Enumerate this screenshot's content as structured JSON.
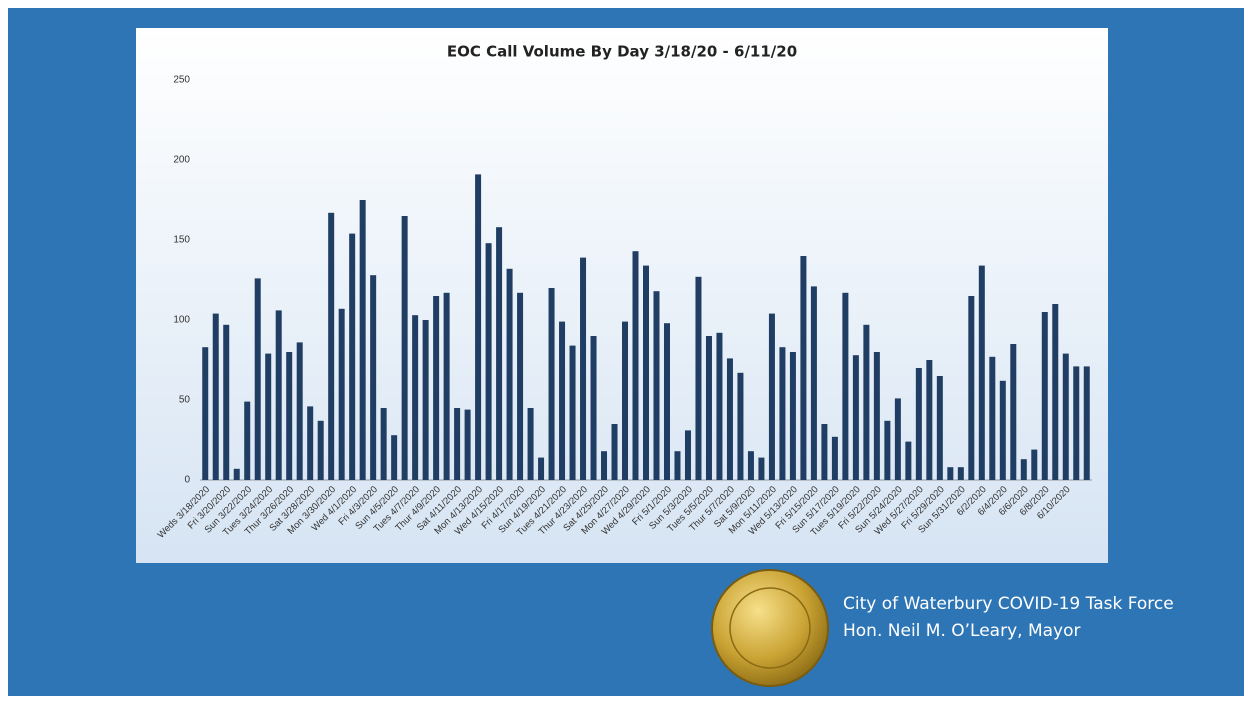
{
  "chart_data": {
    "type": "bar",
    "title": "EOC Call Volume By Day 3/18/20 - 6/11/20",
    "categories": [
      "Weds 3/18/2020",
      null,
      "Fri 3/20/2020",
      null,
      "Sun 3/22/2020",
      null,
      "Tues 3/24/2020",
      null,
      "Thur 3/26/2020",
      null,
      "Sat 3/28/2020",
      null,
      "Mon 3/30/2020",
      null,
      "Wed 4/1/2020",
      null,
      "Fri 4/3/2020",
      null,
      "Sun 4/5/2020",
      null,
      "Tues 4/7/2020",
      null,
      "Thur 4/9/2020",
      null,
      "Sat 4/11/2020",
      null,
      "Mon 4/13/2020",
      null,
      "Wed 4/15/2020",
      null,
      "Fri 4/17/2020",
      null,
      "Sun 4/19/2020",
      null,
      "Tues 4/21/2020",
      null,
      "Thur 4/23/2020",
      null,
      "Sat 4/25/2020",
      null,
      "Mon 4/27/2020",
      null,
      "Wed 4/29/2020",
      null,
      "Fri 5/1/2020",
      null,
      "Sun 5/3/2020",
      null,
      "Tues 5/5/2020",
      null,
      "Thur 5/7/2020",
      null,
      "Sat 5/9/2020",
      null,
      "Mon 5/11/2020",
      null,
      "Wed 5/13/2020",
      null,
      "Fri 5/15/2020",
      null,
      "Sun 5/17/2020",
      null,
      "Tues 5/19/2020",
      null,
      "Fri 5/22/2020",
      null,
      "Sun 5/24/2020",
      null,
      "Wed 5/27/2020",
      null,
      "Fri 5/29/2020",
      null,
      "Sun 5/31/2020",
      null,
      "6/2/2020",
      null,
      "6/4/2020",
      null,
      "6/6/2020",
      null,
      "6/8/2020",
      null,
      "6/10/2020",
      null,
      null
    ],
    "values": [
      83,
      104,
      97,
      7,
      49,
      126,
      79,
      106,
      80,
      86,
      46,
      37,
      167,
      107,
      154,
      175,
      128,
      45,
      28,
      165,
      103,
      100,
      115,
      117,
      45,
      44,
      191,
      148,
      158,
      132,
      117,
      45,
      14,
      120,
      99,
      84,
      139,
      90,
      18,
      35,
      99,
      143,
      134,
      118,
      98,
      18,
      31,
      127,
      90,
      92,
      76,
      67,
      18,
      14,
      104,
      83,
      80,
      140,
      121,
      35,
      27,
      117,
      78,
      97,
      80,
      37,
      51,
      24,
      70,
      75,
      65,
      8,
      8,
      115,
      134,
      77,
      62,
      85,
      13,
      19,
      105,
      110,
      79,
      71,
      71
    ],
    "color": "#203d63",
    "ylim": [
      0,
      250
    ],
    "yticks": [
      0,
      50,
      100,
      150,
      200,
      250
    ],
    "grid": false
  },
  "footer": {
    "lines": [
      "City of Waterbury COVID-19 Task Force",
      "Hon. Neil M. O’Leary, Mayor"
    ]
  }
}
